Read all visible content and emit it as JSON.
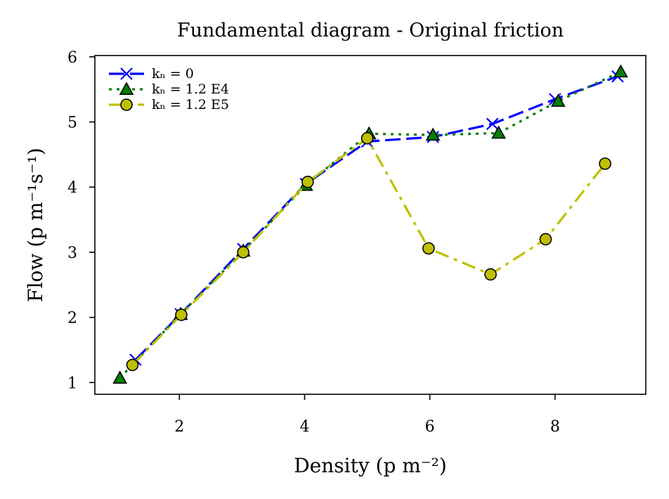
{
  "chart_data": {
    "type": "line",
    "title": "Fundamental diagram - Original friction",
    "xlabel": "Density (p m⁻²)",
    "ylabel": "Flow (p m⁻¹s⁻¹)",
    "xlim": [
      0.65,
      9.45
    ],
    "ylim": [
      0.82,
      6.02
    ],
    "xticks": [
      2,
      4,
      6,
      8
    ],
    "yticks": [
      1,
      2,
      3,
      4,
      5,
      6
    ],
    "grid": false,
    "legend_position": "upper-left",
    "series": [
      {
        "name": "kₙ = 0",
        "color": "#0000ff",
        "linestyle": "dashed",
        "marker": "x",
        "x": [
          1.3,
          2.02,
          3.02,
          4.02,
          5.0,
          6.05,
          7.0,
          8.0,
          9.0
        ],
        "y": [
          1.35,
          2.05,
          3.05,
          4.05,
          4.7,
          4.77,
          4.97,
          5.35,
          5.7
        ]
      },
      {
        "name": "kₙ = 1.2 E4",
        "color": "#008000",
        "linestyle": "dotted",
        "marker": "triangle",
        "x": [
          1.05,
          2.02,
          3.02,
          4.02,
          5.03,
          6.05,
          7.1,
          8.05,
          9.05
        ],
        "y": [
          1.07,
          2.05,
          3.02,
          4.03,
          4.82,
          4.8,
          4.83,
          5.32,
          5.77
        ]
      },
      {
        "name": "kₙ = 1.2 E5",
        "color": "#bfbf00",
        "linestyle": "dashdot",
        "marker": "circle",
        "x": [
          1.25,
          2.03,
          3.02,
          4.05,
          5.0,
          5.98,
          6.97,
          7.85,
          8.8
        ],
        "y": [
          1.27,
          2.04,
          3.0,
          4.08,
          4.75,
          3.06,
          2.66,
          3.2,
          4.36
        ]
      }
    ]
  }
}
